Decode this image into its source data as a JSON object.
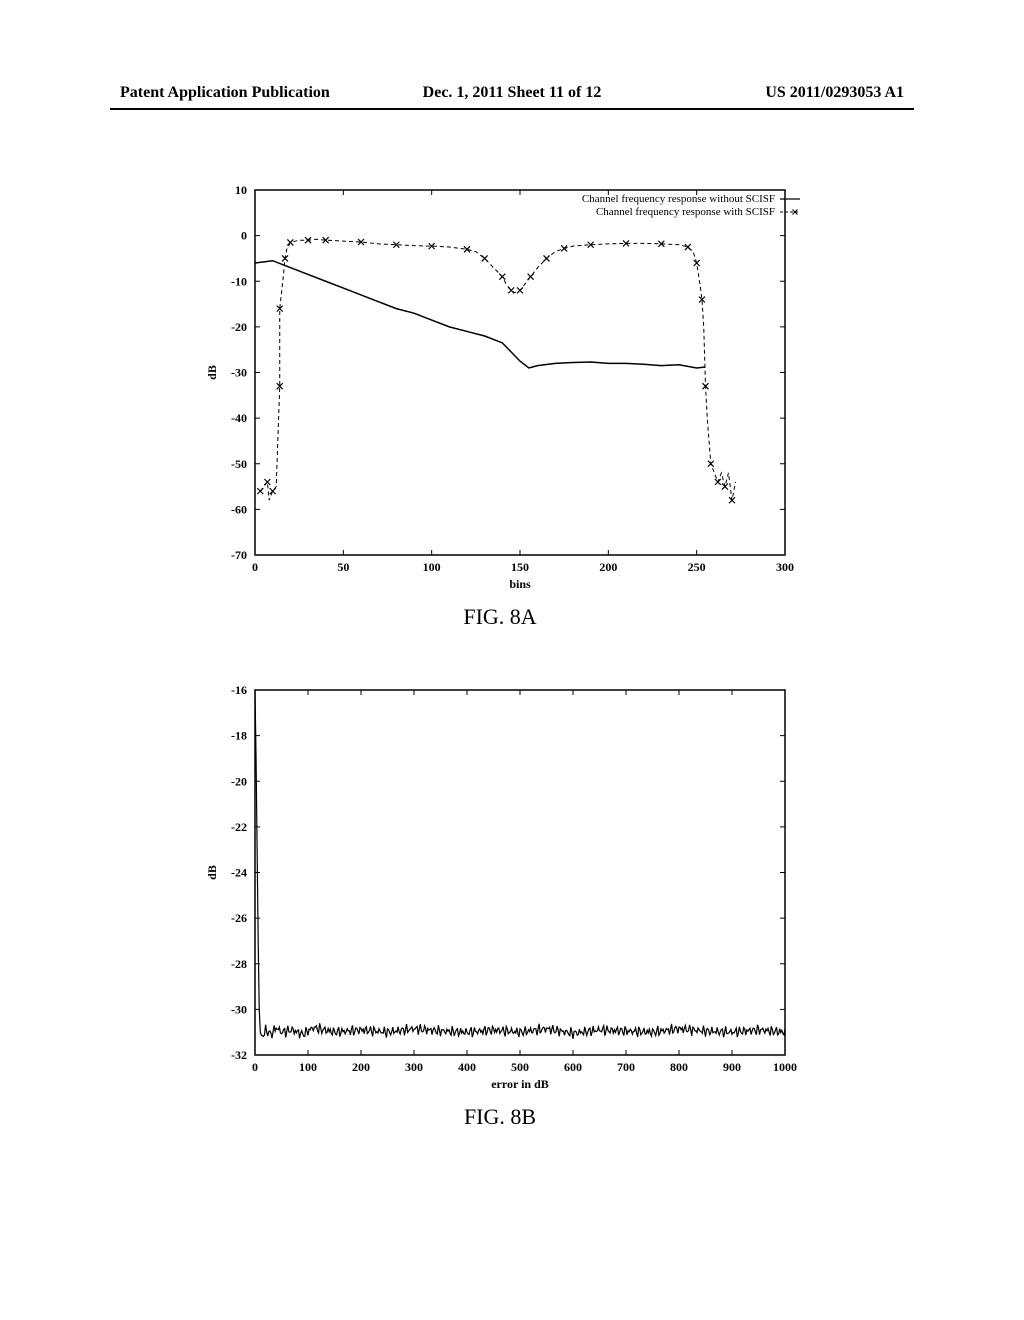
{
  "header": {
    "left": "Patent Application Publication",
    "center": "Dec. 1, 2011  Sheet 11 of 12",
    "right": "US 2011/0293053 A1"
  },
  "fig8a": {
    "title": "FIG. 8A",
    "type": "line",
    "xlabel": "bins",
    "ylabel": "dB",
    "xlim": [
      0,
      300
    ],
    "ylim": [
      -70,
      10
    ],
    "xticks": [
      0,
      50,
      100,
      150,
      200,
      250,
      300
    ],
    "yticks": [
      -70,
      -60,
      -50,
      -40,
      -30,
      -20,
      -10,
      0,
      10
    ],
    "legend": {
      "label1": "Channel frequency response without SCISF",
      "label2": "Channel frequency response with SCISF",
      "style1": "solid",
      "style2": "dash-x"
    },
    "series_solid": [
      [
        0,
        -6
      ],
      [
        10,
        -5.5
      ],
      [
        20,
        -7
      ],
      [
        30,
        -8.5
      ],
      [
        40,
        -10
      ],
      [
        50,
        -11.5
      ],
      [
        60,
        -13
      ],
      [
        70,
        -14.5
      ],
      [
        80,
        -16
      ],
      [
        90,
        -17
      ],
      [
        100,
        -18.5
      ],
      [
        110,
        -20
      ],
      [
        120,
        -21
      ],
      [
        130,
        -22
      ],
      [
        140,
        -23.5
      ],
      [
        145,
        -25.5
      ],
      [
        150,
        -27.5
      ],
      [
        155,
        -29
      ],
      [
        160,
        -28.5
      ],
      [
        170,
        -28
      ],
      [
        180,
        -27.8
      ],
      [
        190,
        -27.7
      ],
      [
        200,
        -28
      ],
      [
        210,
        -28
      ],
      [
        220,
        -28.2
      ],
      [
        230,
        -28.5
      ],
      [
        240,
        -28.3
      ],
      [
        250,
        -29
      ],
      [
        255,
        -28.8
      ]
    ],
    "series_x": [
      [
        3,
        -56
      ],
      [
        5,
        -55
      ],
      [
        7,
        -54
      ],
      [
        8,
        -58
      ],
      [
        10,
        -56
      ],
      [
        12,
        -55
      ],
      [
        14,
        -33
      ],
      [
        14,
        -21
      ],
      [
        14,
        -16
      ],
      [
        16,
        -9
      ],
      [
        17,
        -5
      ],
      [
        18,
        -3
      ],
      [
        20,
        -1.5
      ],
      [
        25,
        -1
      ],
      [
        30,
        -1
      ],
      [
        35,
        -0.8
      ],
      [
        40,
        -1
      ],
      [
        50,
        -1.2
      ],
      [
        60,
        -1.4
      ],
      [
        70,
        -1.8
      ],
      [
        80,
        -2
      ],
      [
        90,
        -2.2
      ],
      [
        100,
        -2.3
      ],
      [
        110,
        -2.5
      ],
      [
        120,
        -3
      ],
      [
        125,
        -3.5
      ],
      [
        130,
        -5
      ],
      [
        135,
        -7
      ],
      [
        140,
        -9
      ],
      [
        142,
        -10.5
      ],
      [
        145,
        -12
      ],
      [
        147,
        -12.5
      ],
      [
        150,
        -12
      ],
      [
        153,
        -10.5
      ],
      [
        156,
        -9
      ],
      [
        160,
        -7
      ],
      [
        165,
        -5
      ],
      [
        170,
        -3.5
      ],
      [
        175,
        -2.8
      ],
      [
        180,
        -2.3
      ],
      [
        190,
        -2
      ],
      [
        200,
        -1.8
      ],
      [
        210,
        -1.7
      ],
      [
        220,
        -1.7
      ],
      [
        230,
        -1.8
      ],
      [
        240,
        -2
      ],
      [
        245,
        -2.5
      ],
      [
        248,
        -3.5
      ],
      [
        250,
        -6
      ],
      [
        252,
        -11
      ],
      [
        253,
        -14
      ],
      [
        254,
        -20
      ],
      [
        255,
        -33
      ],
      [
        256,
        -40
      ],
      [
        258,
        -50
      ],
      [
        260,
        -52
      ],
      [
        262,
        -54
      ],
      [
        264,
        -52
      ],
      [
        266,
        -55
      ],
      [
        268,
        -52
      ],
      [
        270,
        -58
      ],
      [
        272,
        -54
      ]
    ],
    "colors": {
      "line": "#000000",
      "axis": "#000000",
      "background": "#ffffff"
    },
    "line_width": 1.5,
    "marker_size": 3
  },
  "fig8b": {
    "title": "FIG. 8B",
    "type": "line",
    "xlabel": "error in dB",
    "ylabel": "dB",
    "xlim": [
      0,
      1000
    ],
    "ylim": [
      -32,
      -16
    ],
    "xticks": [
      0,
      100,
      200,
      300,
      400,
      500,
      600,
      700,
      800,
      900,
      1000
    ],
    "yticks": [
      -32,
      -30,
      -28,
      -26,
      -24,
      -22,
      -20,
      -18,
      -16
    ],
    "series": [
      [
        0,
        -16
      ],
      [
        2,
        -19
      ],
      [
        4,
        -23
      ],
      [
        6,
        -27
      ],
      [
        8,
        -30
      ],
      [
        10,
        -31
      ],
      [
        15,
        -31.2
      ],
      [
        20,
        -30.9
      ],
      [
        30,
        -31.1
      ],
      [
        40,
        -30.8
      ],
      [
        50,
        -31.0
      ],
      [
        70,
        -30.9
      ],
      [
        90,
        -31.1
      ],
      [
        110,
        -30.8
      ],
      [
        150,
        -31.0
      ],
      [
        200,
        -30.9
      ],
      [
        250,
        -31.0
      ],
      [
        300,
        -30.85
      ],
      [
        350,
        -30.95
      ],
      [
        400,
        -31.0
      ],
      [
        450,
        -30.9
      ],
      [
        500,
        -31.0
      ],
      [
        550,
        -30.85
      ],
      [
        600,
        -31.05
      ],
      [
        650,
        -30.9
      ],
      [
        700,
        -30.95
      ],
      [
        750,
        -31.0
      ],
      [
        800,
        -30.85
      ],
      [
        850,
        -30.95
      ],
      [
        900,
        -31.0
      ],
      [
        950,
        -30.9
      ],
      [
        1000,
        -31.0
      ]
    ],
    "noise_amp": 0.25,
    "colors": {
      "line": "#000000",
      "axis": "#000000",
      "background": "#ffffff"
    },
    "line_width": 1.2
  }
}
